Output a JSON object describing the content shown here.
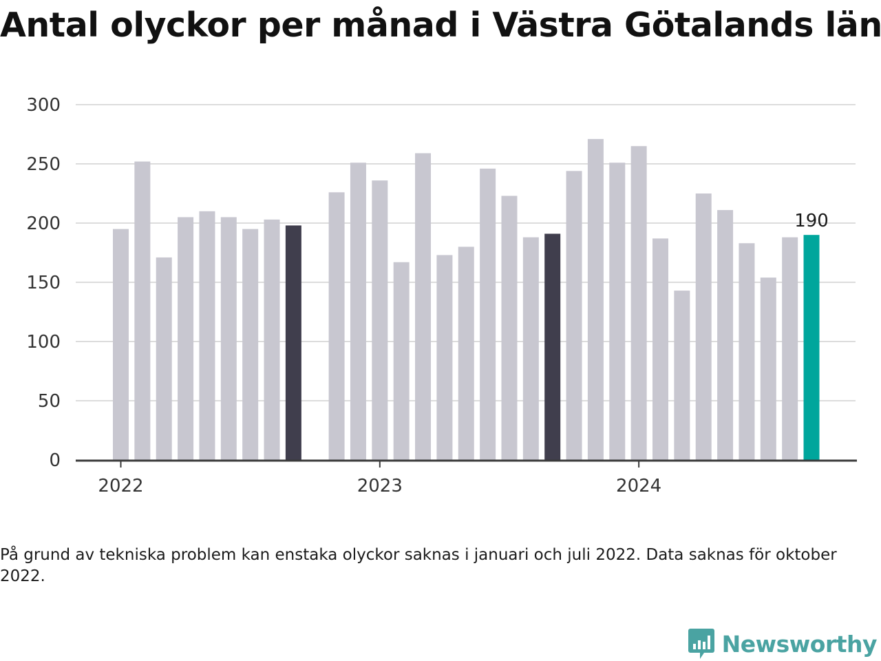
{
  "title": "Antal olyckor per månad i Västra Götalands län",
  "note": "På grund av tekniska problem kan enstaka olyckor saknas i januari och juli 2022. Data saknas för oktober 2022.",
  "brand": {
    "name": "Newsworthy",
    "icon": "newsworthy-chart-icon",
    "color": "#4aa3a2"
  },
  "colors": {
    "bar": "#c8c7d0",
    "september": "#403e4d",
    "latest": "#00a69c",
    "grid": "#dcdcdc",
    "axis": "#3a3a3a"
  },
  "chart_data": {
    "type": "bar",
    "x_tick_labels": [
      "2022",
      "2023",
      "2024"
    ],
    "y_ticks": [
      0,
      50,
      100,
      150,
      200,
      250,
      300
    ],
    "ylim": [
      0,
      300
    ],
    "grid": true,
    "annotation": {
      "month": "2024-09",
      "text": "190"
    },
    "x": [
      "2022-01",
      "2022-02",
      "2022-03",
      "2022-04",
      "2022-05",
      "2022-06",
      "2022-07",
      "2022-08",
      "2022-09",
      "2022-10",
      "2022-11",
      "2022-12",
      "2023-01",
      "2023-02",
      "2023-03",
      "2023-04",
      "2023-05",
      "2023-06",
      "2023-07",
      "2023-08",
      "2023-09",
      "2023-10",
      "2023-11",
      "2023-12",
      "2024-01",
      "2024-02",
      "2024-03",
      "2024-04",
      "2024-05",
      "2024-06",
      "2024-07",
      "2024-08",
      "2024-09"
    ],
    "values": [
      195,
      252,
      171,
      205,
      210,
      205,
      195,
      203,
      198,
      null,
      226,
      251,
      236,
      167,
      259,
      173,
      180,
      246,
      223,
      188,
      191,
      244,
      271,
      251,
      265,
      187,
      143,
      225,
      211,
      183,
      154,
      188,
      190
    ],
    "highlight": {
      "2022-09": "september",
      "2023-09": "september",
      "2024-09": "latest"
    }
  }
}
